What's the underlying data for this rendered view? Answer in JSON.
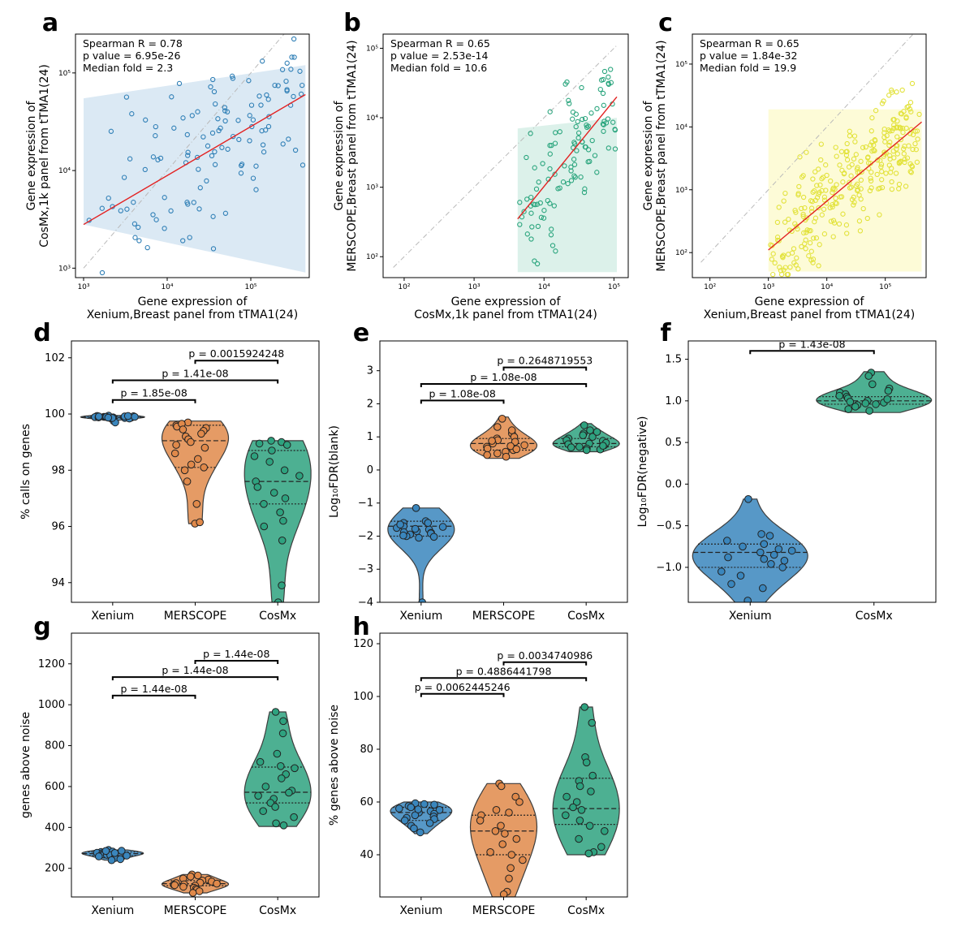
{
  "colors": {
    "xenium": "#3a86bd",
    "merscope": "#e0894a",
    "cosmx": "#2ea27f",
    "scatter_a": "#2f7fb6",
    "scatter_b": "#2aa57d",
    "scatter_c": "#e2e23a",
    "fit": "#e32222",
    "band_a": "#dbe9f4",
    "band_b": "#dcf1ea",
    "band_c": "#fdfbd7",
    "identity": "#b9b9b9"
  },
  "chart_data": [
    {
      "id": "a",
      "panel_label": "a",
      "type": "scatter",
      "log_axes": true,
      "stats": [
        "Spearman R = 0.78",
        "p value = 6.95e-26",
        "Median fold = 2.3"
      ],
      "xlabel": [
        "Gene expression of",
        "Xenium,Breast panel from tTMA1(24)"
      ],
      "ylabel": [
        "Gene expression of",
        "CosMx,1k panel from tTMA1(24)"
      ],
      "xlim": [
        800,
        500000
      ],
      "ylim": [
        800,
        250000
      ],
      "xticks": [
        {
          "v": 1000,
          "label": "10³"
        },
        {
          "v": 10000,
          "label": "10⁴"
        },
        {
          "v": 100000,
          "label": "10⁵"
        }
      ],
      "yticks": [
        {
          "v": 1000,
          "label": "10³"
        },
        {
          "v": 10000,
          "label": "10⁴"
        },
        {
          "v": 100000,
          "label": "10⁵"
        }
      ],
      "identity": [
        1000,
        400000
      ],
      "fit": [
        [
          1000,
          2800
        ],
        [
          450000,
          60000
        ]
      ],
      "band": {
        "xmin": 1000,
        "xmax": 450000,
        "upper_left": 55000,
        "upper_right": 120000,
        "lower_left": 2800,
        "lower_right": 900
      },
      "points_seed": 11,
      "n_points": 120,
      "x_range": [
        1100,
        430000
      ],
      "slope": 0.5,
      "intercept_at_1000": 2800,
      "spread": 0.42,
      "color_key": "scatter_a",
      "band_key": "band_a"
    },
    {
      "id": "b",
      "panel_label": "b",
      "type": "scatter",
      "log_axes": true,
      "stats": [
        "Spearman R = 0.65",
        "p value = 2.53e-14",
        "Median fold = 10.6"
      ],
      "xlabel": [
        "Gene expression of",
        "CosMx,1k panel from tTMA1(24)"
      ],
      "ylabel": [
        "Gene expression of",
        "MERSCOPE,Breast panel from tTMA1(24)"
      ],
      "xlim": [
        50,
        160000
      ],
      "ylim": [
        50,
        160000
      ],
      "xticks": [
        {
          "v": 100,
          "label": "10²"
        },
        {
          "v": 1000,
          "label": "10³"
        },
        {
          "v": 10000,
          "label": "10⁴"
        },
        {
          "v": 100000,
          "label": "10⁵"
        }
      ],
      "yticks": [
        {
          "v": 100,
          "label": "10²"
        },
        {
          "v": 1000,
          "label": "10³"
        },
        {
          "v": 10000,
          "label": "10⁴"
        },
        {
          "v": 100000,
          "label": "10⁵"
        }
      ],
      "identity": [
        70,
        110000
      ],
      "fit": [
        [
          4200,
          350
        ],
        [
          110000,
          20000
        ]
      ],
      "band": {
        "xmin": 4200,
        "xmax": 110000,
        "upper_left": 7000,
        "upper_right": 10000,
        "lower_left": 60,
        "lower_right": 60
      },
      "points_seed": 23,
      "n_points": 115,
      "x_range": [
        4300,
        105000
      ],
      "slope": 1.25,
      "intercept_at_1000": 57,
      "spread": 0.45,
      "color_key": "scatter_b",
      "band_key": "band_b"
    },
    {
      "id": "c",
      "panel_label": "c",
      "type": "scatter",
      "log_axes": true,
      "stats": [
        "Spearman R = 0.65",
        "p value = 1.84e-32",
        "Median fold = 19.9"
      ],
      "xlabel": [
        "Gene expression of",
        "Xenium,Breast panel from tTMA1(24)"
      ],
      "ylabel": [
        "Gene expression of",
        "MERSCOPE,Breast panel from tTMA1(24)"
      ],
      "xlim": [
        50,
        500000
      ],
      "ylim": [
        40,
        300000
      ],
      "xticks": [
        {
          "v": 100,
          "label": "10²"
        },
        {
          "v": 1000,
          "label": "10³"
        },
        {
          "v": 10000,
          "label": "10⁴"
        },
        {
          "v": 100000,
          "label": "10⁵"
        }
      ],
      "yticks": [
        {
          "v": 100,
          "label": "10²"
        },
        {
          "v": 1000,
          "label": "10³"
        },
        {
          "v": 10000,
          "label": "10⁴"
        },
        {
          "v": 100000,
          "label": "10⁵"
        }
      ],
      "identity": [
        70,
        400000
      ],
      "fit": [
        [
          1000,
          110
        ],
        [
          420000,
          12000
        ]
      ],
      "band": {
        "xmin": 1000,
        "xmax": 420000,
        "upper_left": 19000,
        "upper_right": 19000,
        "lower_left": 50,
        "lower_right": 50
      },
      "points_seed": 37,
      "n_points": 300,
      "x_range": [
        1000,
        400000
      ],
      "slope": 0.78,
      "intercept_at_1000": 110,
      "spread": 0.42,
      "color_key": "scatter_c",
      "band_key": "band_c"
    },
    {
      "id": "d",
      "panel_label": "d",
      "type": "violin",
      "ylabel": "% calls on genes",
      "ylim": [
        93.3,
        102.6
      ],
      "yticks": [
        94,
        96,
        98,
        100,
        102
      ],
      "categories": [
        "Xenium",
        "MERSCOPE",
        "CosMx"
      ],
      "groups": [
        {
          "name": "Xenium",
          "color_key": "xenium",
          "min": 99.65,
          "max": 99.95,
          "q1": 99.85,
          "median": 99.88,
          "q3": 99.92,
          "width": 0.25,
          "points": [
            99.9,
            99.88,
            99.85,
            99.93,
            99.9,
            99.87,
            99.92,
            99.86,
            99.91,
            99.89,
            99.84,
            99.94,
            99.9,
            99.88,
            99.7,
            99.91,
            99.86,
            99.9,
            99.87,
            99.93
          ]
        },
        {
          "name": "MERSCOPE",
          "color_key": "merscope",
          "min": 96.1,
          "max": 99.75,
          "q1": 98.1,
          "median": 99.05,
          "q3": 99.6,
          "width": 0.26,
          "points": [
            99.7,
            99.6,
            99.55,
            99.5,
            99.4,
            99.3,
            99.2,
            99.1,
            99.0,
            98.9,
            98.8,
            98.6,
            98.4,
            98.2,
            98.1,
            98.0,
            97.6,
            96.8,
            96.1,
            96.15,
            99.65,
            99.45
          ]
        },
        {
          "name": "CosMx",
          "color_key": "cosmx",
          "min": 93.3,
          "max": 99.05,
          "q1": 96.8,
          "median": 97.6,
          "q3": 98.7,
          "width": 0.26,
          "points": [
            99.05,
            99.0,
            98.9,
            98.7,
            98.5,
            98.3,
            98.0,
            97.8,
            97.6,
            97.4,
            97.2,
            97.0,
            96.8,
            96.5,
            96.2,
            96.0,
            95.5,
            93.9,
            93.3,
            98.95
          ]
        }
      ],
      "brackets": [
        {
          "from": 0,
          "to": 1,
          "y": 100.5,
          "label": "p = 1.85e-08"
        },
        {
          "from": 0,
          "to": 2,
          "y": 101.2,
          "label": "p = 1.41e-08"
        },
        {
          "from": 1,
          "to": 2,
          "y": 101.9,
          "label": "p = 0.0015924248"
        }
      ]
    },
    {
      "id": "e",
      "panel_label": "e",
      "type": "violin",
      "ylabel": "Log₁₀FDR(blank)",
      "ylim": [
        -4,
        3.9
      ],
      "yticks": [
        -4,
        -3,
        -2,
        -1,
        0,
        1,
        2,
        3
      ],
      "categories": [
        "Xenium",
        "MERSCOPE",
        "CosMx"
      ],
      "groups": [
        {
          "name": "Xenium",
          "color_key": "xenium",
          "min": -4.2,
          "max": -1.15,
          "q1": -2.0,
          "median": -1.7,
          "q3": -1.55,
          "width": 0.26,
          "points": [
            -1.15,
            -1.55,
            -1.6,
            -1.7,
            -1.75,
            -1.8,
            -1.85,
            -1.9,
            -1.95,
            -2.0,
            -2.05,
            -1.65,
            -1.72,
            -1.88,
            -1.98,
            -4.0,
            -1.6,
            -1.78,
            -1.92,
            -2.02
          ]
        },
        {
          "name": "MERSCOPE",
          "color_key": "merscope",
          "min": 0.35,
          "max": 1.6,
          "q1": 0.6,
          "median": 0.8,
          "q3": 0.95,
          "width": 0.26,
          "points": [
            1.55,
            1.3,
            1.1,
            1.0,
            0.95,
            0.9,
            0.85,
            0.8,
            0.75,
            0.7,
            0.65,
            0.6,
            0.55,
            0.5,
            0.45,
            0.4,
            0.88,
            0.72,
            0.63,
            1.2
          ]
        },
        {
          "name": "CosMx",
          "color_key": "cosmx",
          "min": 0.55,
          "max": 1.4,
          "q1": 0.7,
          "median": 0.8,
          "q3": 0.95,
          "width": 0.26,
          "points": [
            1.35,
            1.2,
            1.1,
            1.05,
            1.0,
            0.95,
            0.9,
            0.85,
            0.8,
            0.78,
            0.75,
            0.7,
            0.68,
            0.65,
            0.62,
            0.6,
            0.88,
            0.82,
            0.73,
            1.15
          ]
        }
      ],
      "brackets": [
        {
          "from": 0,
          "to": 1,
          "y": 2.1,
          "label": "p = 1.08e-08"
        },
        {
          "from": 0,
          "to": 2,
          "y": 2.6,
          "label": "p = 1.08e-08"
        },
        {
          "from": 1,
          "to": 2,
          "y": 3.1,
          "label": "p = 0.2648719553"
        }
      ]
    },
    {
      "id": "f",
      "panel_label": "f",
      "type": "violin",
      "ylabel": "Log₁₀FDR(negative)",
      "ylim": [
        -1.42,
        1.72
      ],
      "yticks": [
        -1.0,
        -0.5,
        0.0,
        0.5,
        1.0,
        1.5
      ],
      "tick_format": "fixed1",
      "categories": [
        "Xenium",
        "CosMx"
      ],
      "groups": [
        {
          "name": "Xenium",
          "color_key": "xenium",
          "min": -1.45,
          "max": -0.18,
          "q1": -1.0,
          "median": -0.82,
          "q3": -0.72,
          "width": 0.3,
          "points": [
            -0.18,
            -0.6,
            -0.62,
            -0.68,
            -0.72,
            -0.75,
            -0.78,
            -0.82,
            -0.85,
            -0.88,
            -0.92,
            -0.96,
            -1.0,
            -1.05,
            -1.1,
            -1.2,
            -1.25,
            -1.4,
            -0.8,
            -0.9
          ]
        },
        {
          "name": "CosMx",
          "color_key": "cosmx",
          "min": 0.86,
          "max": 1.35,
          "q1": 0.96,
          "median": 1.0,
          "q3": 1.05,
          "width": 0.3,
          "points": [
            1.34,
            1.3,
            1.2,
            1.15,
            1.1,
            1.08,
            1.05,
            1.03,
            1.0,
            0.99,
            0.98,
            0.97,
            0.96,
            0.95,
            0.93,
            0.9,
            0.88,
            1.02,
            1.06,
            1.12
          ]
        }
      ],
      "brackets": [
        {
          "from": 0,
          "to": 1,
          "y": 1.6,
          "label": "p = 1.43e-08"
        }
      ]
    },
    {
      "id": "g",
      "panel_label": "g",
      "type": "violin",
      "ylabel": "genes above noise",
      "ylim": [
        60,
        1350
      ],
      "yticks": [
        200,
        400,
        600,
        800,
        1000,
        1200
      ],
      "categories": [
        "Xenium",
        "MERSCOPE",
        "CosMx"
      ],
      "groups": [
        {
          "name": "Xenium",
          "color_key": "xenium",
          "min": 240,
          "max": 290,
          "q1": 262,
          "median": 272,
          "q3": 280,
          "width": 0.24,
          "points": [
            290,
            286,
            282,
            280,
            278,
            276,
            274,
            272,
            270,
            268,
            266,
            264,
            262,
            258,
            254,
            250,
            245,
            240,
            285,
            275
          ]
        },
        {
          "name": "MERSCOPE",
          "color_key": "merscope",
          "min": 80,
          "max": 170,
          "q1": 115,
          "median": 125,
          "q3": 140,
          "width": 0.26,
          "points": [
            170,
            160,
            150,
            145,
            140,
            135,
            130,
            128,
            125,
            122,
            120,
            118,
            115,
            110,
            105,
            100,
            95,
            88,
            80,
            165
          ]
        },
        {
          "name": "CosMx",
          "color_key": "cosmx",
          "min": 405,
          "max": 965,
          "q1": 520,
          "median": 572,
          "q3": 695,
          "width": 0.26,
          "points": [
            965,
            920,
            860,
            760,
            720,
            700,
            690,
            660,
            640,
            600,
            580,
            570,
            555,
            540,
            520,
            500,
            480,
            450,
            420,
            410
          ]
        }
      ],
      "brackets": [
        {
          "from": 0,
          "to": 1,
          "y": 1045,
          "label": "p = 1.44e-08"
        },
        {
          "from": 0,
          "to": 2,
          "y": 1135,
          "label": "p = 1.44e-08"
        },
        {
          "from": 1,
          "to": 2,
          "y": 1215,
          "label": "p = 1.44e-08"
        }
      ]
    },
    {
      "id": "h",
      "panel_label": "h",
      "type": "violin",
      "ylabel": "% genes above noise",
      "ylim": [
        24,
        124
      ],
      "yticks": [
        40,
        60,
        80,
        100,
        120
      ],
      "categories": [
        "Xenium",
        "MERSCOPE",
        "CosMx"
      ],
      "groups": [
        {
          "name": "Xenium",
          "color_key": "xenium",
          "min": 48,
          "max": 60,
          "q1": 53,
          "median": 56,
          "q3": 58,
          "width": 0.24,
          "points": [
            59.5,
            59,
            58.5,
            58,
            57.5,
            57,
            56.5,
            56,
            55.5,
            55,
            54.5,
            54,
            53.5,
            53,
            52,
            51,
            50,
            48.5,
            59.2,
            57.2
          ]
        },
        {
          "name": "MERSCOPE",
          "color_key": "merscope",
          "min": 24,
          "max": 67,
          "q1": 40,
          "median": 49,
          "q3": 55,
          "width": 0.26,
          "points": [
            67,
            66,
            62,
            60,
            57,
            56,
            55,
            53,
            51,
            49,
            48,
            46,
            44,
            41,
            40,
            38,
            35,
            31,
            26,
            25
          ]
        },
        {
          "name": "CosMx",
          "color_key": "cosmx",
          "min": 40,
          "max": 96,
          "q1": 51.5,
          "median": 57.5,
          "q3": 69,
          "width": 0.26,
          "points": [
            96,
            90,
            77,
            75,
            70,
            68,
            66,
            64,
            62,
            60,
            58,
            57,
            55,
            53,
            51,
            49,
            46,
            43,
            41,
            40.5
          ]
        }
      ],
      "brackets": [
        {
          "from": 0,
          "to": 1,
          "y": 101,
          "label": "p = 0.0062445246"
        },
        {
          "from": 0,
          "to": 2,
          "y": 107,
          "label": "p = 0.4886441798"
        },
        {
          "from": 1,
          "to": 2,
          "y": 113,
          "label": "p = 0.0034740986"
        }
      ]
    }
  ]
}
